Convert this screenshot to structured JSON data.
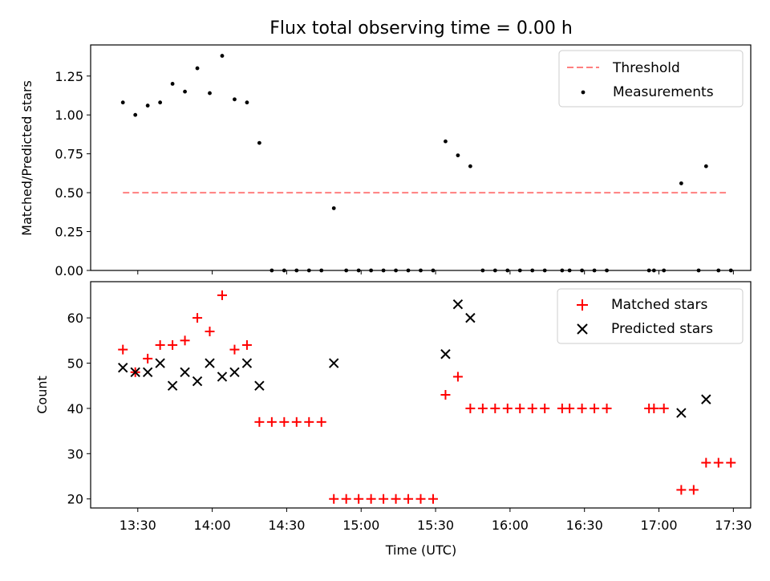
{
  "title": "Flux total observing time = 0.00 h",
  "xlabel": "Time (UTC)",
  "x_ticks": [
    "13:30",
    "14:00",
    "14:30",
    "15:00",
    "15:30",
    "16:00",
    "16:30",
    "17:00",
    "17:30"
  ],
  "x_tick_minutes": [
    810,
    840,
    870,
    900,
    930,
    960,
    990,
    1020,
    1050
  ],
  "xlim_minutes": [
    791,
    1057
  ],
  "chart_data": [
    {
      "type": "scatter",
      "title": "Flux total observing time = 0.00 h",
      "ylabel": "Matched/Predicted stars",
      "ylim": [
        0,
        1.45
      ],
      "y_ticks": [
        "0.00",
        "0.25",
        "0.50",
        "0.75",
        "1.00",
        "1.25"
      ],
      "y_tick_values": [
        0,
        0.25,
        0.5,
        0.75,
        1.0,
        1.25
      ],
      "legend": [
        "Threshold",
        "Measurements"
      ],
      "legend_position": "top-right",
      "threshold": {
        "name": "Threshold",
        "y": 0.5,
        "x_start": "13:24",
        "x_end": "17:27",
        "color": "#ff7f7f",
        "style": "dashed"
      },
      "measurements": {
        "name": "Measurements",
        "color": "#000000",
        "x": [
          "13:24",
          "13:29",
          "13:34",
          "13:39",
          "13:44",
          "13:49",
          "13:54",
          "13:59",
          "14:04",
          "14:09",
          "14:14",
          "14:19",
          "14:24",
          "14:29",
          "14:34",
          "14:39",
          "14:44",
          "14:49",
          "14:54",
          "14:59",
          "15:04",
          "15:09",
          "15:14",
          "15:19",
          "15:24",
          "15:29",
          "15:34",
          "15:39",
          "15:44",
          "15:49",
          "15:54",
          "15:59",
          "16:04",
          "16:09",
          "16:14",
          "16:21",
          "16:24",
          "16:29",
          "16:34",
          "16:39",
          "16:56",
          "16:58",
          "17:02",
          "17:09",
          "17:16",
          "17:19",
          "17:24",
          "17:29"
        ],
        "y": [
          1.08,
          1.0,
          1.06,
          1.08,
          1.2,
          1.15,
          1.3,
          1.14,
          1.38,
          1.1,
          1.08,
          0.82,
          0,
          0,
          0,
          0,
          0,
          0.4,
          0,
          0,
          0,
          0,
          0,
          0,
          0,
          0,
          0.83,
          0.74,
          0.67,
          0,
          0,
          0,
          0,
          0,
          0,
          0,
          0,
          0,
          0,
          0,
          0,
          0,
          0,
          0.56,
          0,
          0.67,
          0,
          0
        ]
      }
    },
    {
      "type": "scatter",
      "xlabel": "Time (UTC)",
      "ylabel": "Count",
      "ylim": [
        18,
        68
      ],
      "y_ticks": [
        "20",
        "30",
        "40",
        "50",
        "60"
      ],
      "y_tick_values": [
        20,
        30,
        40,
        50,
        60
      ],
      "legend": [
        "Matched stars",
        "Predicted stars"
      ],
      "legend_position": "top-right",
      "series": [
        {
          "name": "Matched stars",
          "marker": "+",
          "color": "#ff0000",
          "x": [
            "13:24",
            "13:29",
            "13:34",
            "13:39",
            "13:44",
            "13:49",
            "13:54",
            "13:59",
            "14:04",
            "14:09",
            "14:14",
            "14:19",
            "14:24",
            "14:29",
            "14:34",
            "14:39",
            "14:44",
            "14:49",
            "14:54",
            "14:59",
            "15:04",
            "15:09",
            "15:14",
            "15:19",
            "15:24",
            "15:29",
            "15:34",
            "15:39",
            "15:44",
            "15:49",
            "15:54",
            "15:59",
            "16:04",
            "16:09",
            "16:14",
            "16:21",
            "16:24",
            "16:29",
            "16:34",
            "16:39",
            "16:56",
            "16:58",
            "17:02",
            "17:09",
            "17:14",
            "17:19",
            "17:24",
            "17:29"
          ],
          "y": [
            53,
            48,
            51,
            54,
            54,
            55,
            60,
            57,
            65,
            53,
            54,
            37,
            37,
            37,
            37,
            37,
            37,
            20,
            20,
            20,
            20,
            20,
            20,
            20,
            20,
            20,
            43,
            47,
            40,
            40,
            40,
            40,
            40,
            40,
            40,
            40,
            40,
            40,
            40,
            40,
            40,
            40,
            40,
            22,
            22,
            28,
            28,
            28
          ]
        },
        {
          "name": "Predicted stars",
          "marker": "x",
          "color": "#000000",
          "x": [
            "13:24",
            "13:29",
            "13:34",
            "13:39",
            "13:44",
            "13:49",
            "13:54",
            "13:59",
            "14:04",
            "14:09",
            "14:14",
            "14:19",
            "14:49",
            "15:34",
            "15:39",
            "15:44",
            "17:09",
            "17:19"
          ],
          "y": [
            49,
            48,
            48,
            50,
            45,
            48,
            46,
            50,
            47,
            48,
            50,
            45,
            50,
            52,
            63,
            60,
            39,
            42
          ]
        }
      ]
    }
  ]
}
